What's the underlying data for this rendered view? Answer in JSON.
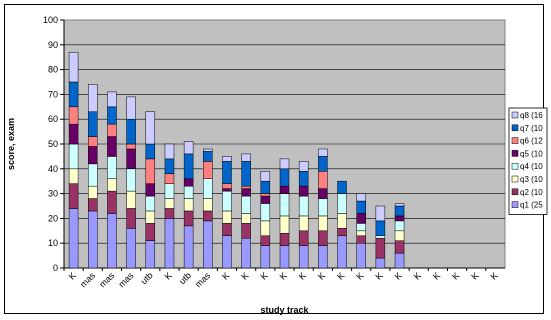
{
  "chart_data": {
    "type": "bar",
    "stacked": true,
    "xlabel": "study track",
    "ylabel": "score, exam",
    "ylim": [
      0,
      100
    ],
    "yticks": [
      0,
      10,
      20,
      30,
      40,
      50,
      60,
      70,
      80,
      90,
      100
    ],
    "grid": true,
    "legend_position": "right",
    "categories": [
      "K",
      "mas",
      "mas",
      "mas",
      "utb",
      "K",
      "utb",
      "mas",
      "K",
      "K",
      "K",
      "K",
      "K",
      "K",
      "K",
      "K",
      "K",
      "K",
      "K",
      "K",
      "K",
      "K",
      "K"
    ],
    "series": [
      {
        "name": "q1 (25",
        "color": "#9999ff",
        "values": [
          24,
          23,
          22,
          16,
          11,
          20,
          17,
          19,
          13,
          12,
          9,
          9,
          9,
          9,
          13,
          10,
          4,
          6,
          0,
          0,
          0,
          0,
          0
        ]
      },
      {
        "name": "q2 (10",
        "color": "#993366",
        "values": [
          10,
          5,
          9,
          8,
          7,
          4,
          6,
          4,
          5,
          6,
          4,
          5,
          6,
          6,
          3,
          3,
          8,
          5,
          0,
          0,
          0,
          0,
          0
        ]
      },
      {
        "name": "q3 (10",
        "color": "#ffffcc",
        "values": [
          6,
          5,
          5,
          7,
          5,
          4,
          5,
          5,
          5,
          4,
          6,
          7,
          6,
          6,
          6,
          2,
          0,
          4,
          0,
          0,
          0,
          0,
          0
        ]
      },
      {
        "name": "q4 (10",
        "color": "#ccffff",
        "values": [
          10,
          9,
          9,
          9,
          6,
          6,
          5,
          8,
          8,
          7,
          7,
          9,
          8,
          7,
          8,
          3,
          1,
          4,
          0,
          0,
          0,
          0,
          0
        ]
      },
      {
        "name": "q5 (10",
        "color": "#660066",
        "values": [
          8,
          7,
          8,
          8,
          5,
          0,
          3,
          0,
          1,
          3,
          3,
          3,
          4,
          4,
          0,
          4,
          0,
          2,
          0,
          0,
          0,
          0,
          0
        ]
      },
      {
        "name": "q6 (12",
        "color": "#ff8080",
        "values": [
          7,
          4,
          5,
          2,
          10,
          4,
          0,
          7,
          2,
          1,
          1,
          0,
          0,
          7,
          0,
          0,
          0,
          0,
          0,
          0,
          0,
          0,
          0
        ]
      },
      {
        "name": "q7 (10",
        "color": "#0066cc",
        "values": [
          10,
          10,
          7,
          10,
          6,
          6,
          10,
          4,
          9,
          10,
          5,
          7,
          6,
          6,
          5,
          5,
          6,
          4,
          0,
          0,
          0,
          0,
          0
        ]
      },
      {
        "name": "q8 (16",
        "color": "#ccccff",
        "values": [
          12,
          11,
          6,
          9,
          13,
          6,
          5,
          1,
          2,
          3,
          4,
          4,
          4,
          3,
          0,
          3,
          6,
          1,
          0,
          0,
          0,
          0,
          0
        ]
      }
    ]
  }
}
